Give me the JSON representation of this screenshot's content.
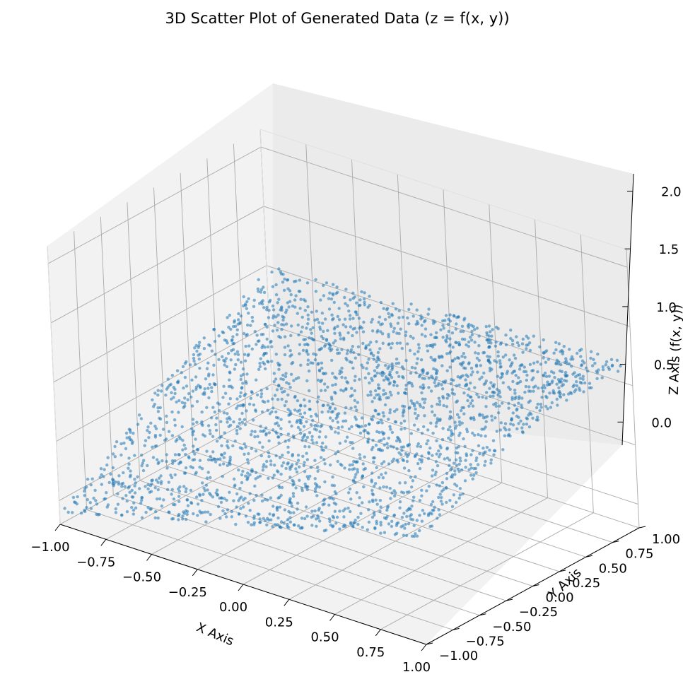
{
  "chart_data": {
    "type": "scatter",
    "projection": "3d",
    "title": "3D Scatter Plot of Generated Data (z = f(x, y))",
    "xlabel": "X Axis",
    "ylabel": "Y Axis",
    "zlabel": "Z Axis (f(x, y))",
    "xlim": [
      -1.0,
      1.0
    ],
    "ylim": [
      -1.0,
      1.0
    ],
    "zlim": [
      -0.2,
      2.15
    ],
    "x_ticks": [
      "−1.00",
      "−0.75",
      "−0.50",
      "−0.25",
      "0.00",
      "0.25",
      "0.50",
      "0.75",
      "1.00"
    ],
    "y_ticks": [
      "−1.00",
      "−0.75",
      "−0.50",
      "−0.25",
      "0.00",
      "0.25",
      "0.50",
      "0.75",
      "1.00"
    ],
    "z_ticks": [
      "0.0",
      "0.5",
      "1.0",
      "1.5",
      "2.0"
    ],
    "grid": true,
    "marker_color": "#1f77b4",
    "series_sample": [
      {
        "x": -1.0,
        "y": -1.0,
        "z": 0.05
      },
      {
        "x": -0.5,
        "y": -1.0,
        "z": 0.17
      },
      {
        "x": 0.0,
        "y": -1.0,
        "z": 0.35
      },
      {
        "x": 0.5,
        "y": -1.0,
        "z": 0.42
      },
      {
        "x": 1.0,
        "y": -1.0,
        "z": 0.55
      },
      {
        "x": -1.0,
        "y": 0.0,
        "z": 0.5
      },
      {
        "x": 0.0,
        "y": 0.0,
        "z": 0.85
      },
      {
        "x": 1.0,
        "y": 0.0,
        "z": 1.0
      },
      {
        "x": -1.0,
        "y": 1.0,
        "z": 0.85
      },
      {
        "x": -0.5,
        "y": 1.0,
        "z": 1.2
      },
      {
        "x": 0.0,
        "y": 1.0,
        "z": 1.35
      },
      {
        "x": 0.5,
        "y": 1.0,
        "z": 1.42
      },
      {
        "x": 1.0,
        "y": 1.0,
        "z": 1.45
      }
    ]
  }
}
